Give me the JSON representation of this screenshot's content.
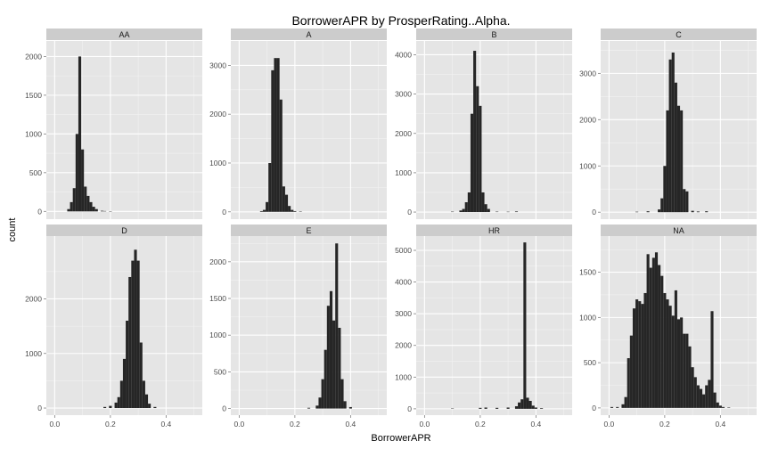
{
  "chart_data": {
    "type": "bar",
    "title": "BorrowerAPR by ProsperRating..Alpha.",
    "xlabel": "BorrowerAPR",
    "ylabel": "count",
    "xlim": [
      -0.03,
      0.53
    ],
    "x_ticks": [
      "0.0",
      "0.2",
      "0.4"
    ],
    "x_tick_values": [
      0,
      0.2,
      0.4
    ],
    "bin_width": 0.01,
    "grid": true,
    "facets": [
      {
        "label": "AA",
        "ylim": [
          -100,
          2200
        ],
        "y_ticks": [
          0,
          500,
          1000,
          1500,
          2000
        ],
        "bins": [
          [
            0.05,
            30
          ],
          [
            0.06,
            120
          ],
          [
            0.07,
            300
          ],
          [
            0.08,
            1000
          ],
          [
            0.09,
            2000
          ],
          [
            0.1,
            800
          ],
          [
            0.11,
            320
          ],
          [
            0.12,
            200
          ],
          [
            0.13,
            120
          ],
          [
            0.14,
            60
          ],
          [
            0.15,
            30
          ],
          [
            0.17,
            8
          ],
          [
            0.18,
            5
          ],
          [
            0.2,
            3
          ]
        ]
      },
      {
        "label": "A",
        "ylim": [
          -150,
          3500
        ],
        "y_ticks": [
          0,
          1000,
          2000,
          3000
        ],
        "bins": [
          [
            0.08,
            15
          ],
          [
            0.09,
            40
          ],
          [
            0.1,
            200
          ],
          [
            0.11,
            1000
          ],
          [
            0.12,
            2900
          ],
          [
            0.13,
            3150
          ],
          [
            0.14,
            3150
          ],
          [
            0.15,
            2300
          ],
          [
            0.16,
            520
          ],
          [
            0.17,
            350
          ],
          [
            0.18,
            120
          ],
          [
            0.19,
            40
          ],
          [
            0.2,
            15
          ],
          [
            0.22,
            8
          ]
        ]
      },
      {
        "label": "B",
        "ylim": [
          -180,
          4350
        ],
        "y_ticks": [
          0,
          1000,
          2000,
          3000,
          4000
        ],
        "bins": [
          [
            0.1,
            10
          ],
          [
            0.13,
            40
          ],
          [
            0.14,
            80
          ],
          [
            0.15,
            250
          ],
          [
            0.16,
            500
          ],
          [
            0.17,
            2500
          ],
          [
            0.18,
            4100
          ],
          [
            0.19,
            3200
          ],
          [
            0.2,
            2700
          ],
          [
            0.21,
            500
          ],
          [
            0.22,
            200
          ],
          [
            0.23,
            80
          ],
          [
            0.26,
            10
          ],
          [
            0.3,
            8
          ],
          [
            0.33,
            15
          ]
        ]
      },
      {
        "label": "C",
        "ylim": [
          -150,
          3700
        ],
        "y_ticks": [
          0,
          1000,
          2000,
          3000
        ],
        "bins": [
          [
            0.1,
            10
          ],
          [
            0.14,
            20
          ],
          [
            0.18,
            60
          ],
          [
            0.19,
            300
          ],
          [
            0.2,
            1000
          ],
          [
            0.21,
            2200
          ],
          [
            0.22,
            3300
          ],
          [
            0.23,
            3450
          ],
          [
            0.24,
            2800
          ],
          [
            0.25,
            2300
          ],
          [
            0.26,
            2200
          ],
          [
            0.27,
            500
          ],
          [
            0.28,
            450
          ],
          [
            0.3,
            30
          ],
          [
            0.32,
            15
          ],
          [
            0.35,
            20
          ]
        ]
      },
      {
        "label": "D",
        "ylim": [
          -130,
          3150
        ],
        "y_ticks": [
          0,
          1000,
          2000
        ],
        "bins": [
          [
            0.18,
            20
          ],
          [
            0.2,
            40
          ],
          [
            0.22,
            100
          ],
          [
            0.23,
            200
          ],
          [
            0.24,
            500
          ],
          [
            0.25,
            900
          ],
          [
            0.26,
            1600
          ],
          [
            0.27,
            2400
          ],
          [
            0.28,
            2700
          ],
          [
            0.29,
            2900
          ],
          [
            0.3,
            2700
          ],
          [
            0.31,
            1200
          ],
          [
            0.32,
            500
          ],
          [
            0.33,
            250
          ],
          [
            0.34,
            80
          ],
          [
            0.36,
            20
          ]
        ]
      },
      {
        "label": "E",
        "ylim": [
          -90,
          2350
        ],
        "y_ticks": [
          0,
          500,
          1000,
          1500,
          2000
        ],
        "bins": [
          [
            0.25,
            10
          ],
          [
            0.28,
            40
          ],
          [
            0.29,
            150
          ],
          [
            0.3,
            400
          ],
          [
            0.31,
            800
          ],
          [
            0.32,
            1400
          ],
          [
            0.33,
            1600
          ],
          [
            0.34,
            1200
          ],
          [
            0.35,
            2250
          ],
          [
            0.36,
            1100
          ],
          [
            0.37,
            400
          ],
          [
            0.38,
            100
          ],
          [
            0.4,
            20
          ]
        ]
      },
      {
        "label": "HR",
        "ylim": [
          -200,
          5450
        ],
        "y_ticks": [
          0,
          1000,
          2000,
          3000,
          4000,
          5000
        ],
        "bins": [
          [
            0.1,
            8
          ],
          [
            0.2,
            30
          ],
          [
            0.22,
            40
          ],
          [
            0.26,
            30
          ],
          [
            0.3,
            40
          ],
          [
            0.33,
            80
          ],
          [
            0.34,
            200
          ],
          [
            0.35,
            300
          ],
          [
            0.36,
            5250
          ],
          [
            0.37,
            350
          ],
          [
            0.38,
            250
          ],
          [
            0.39,
            100
          ],
          [
            0.4,
            40
          ],
          [
            0.42,
            20
          ]
        ]
      },
      {
        "label": "NA",
        "ylim": [
          -80,
          1900
        ],
        "y_ticks": [
          0,
          500,
          1000,
          1500
        ],
        "bins": [
          [
            0.01,
            10
          ],
          [
            0.03,
            10
          ],
          [
            0.05,
            40
          ],
          [
            0.06,
            120
          ],
          [
            0.07,
            550
          ],
          [
            0.08,
            800
          ],
          [
            0.09,
            1100
          ],
          [
            0.1,
            1200
          ],
          [
            0.11,
            1180
          ],
          [
            0.12,
            1150
          ],
          [
            0.13,
            1270
          ],
          [
            0.14,
            1700
          ],
          [
            0.15,
            1550
          ],
          [
            0.16,
            1660
          ],
          [
            0.17,
            1720
          ],
          [
            0.18,
            1580
          ],
          [
            0.19,
            1460
          ],
          [
            0.2,
            1270
          ],
          [
            0.21,
            1200
          ],
          [
            0.22,
            1130
          ],
          [
            0.23,
            1020
          ],
          [
            0.24,
            1300
          ],
          [
            0.25,
            980
          ],
          [
            0.26,
            1000
          ],
          [
            0.27,
            820
          ],
          [
            0.28,
            820
          ],
          [
            0.29,
            680
          ],
          [
            0.3,
            450
          ],
          [
            0.31,
            340
          ],
          [
            0.32,
            250
          ],
          [
            0.33,
            210
          ],
          [
            0.34,
            150
          ],
          [
            0.35,
            250
          ],
          [
            0.36,
            310
          ],
          [
            0.37,
            1070
          ],
          [
            0.38,
            170
          ],
          [
            0.39,
            60
          ],
          [
            0.4,
            25
          ],
          [
            0.41,
            10
          ],
          [
            0.43,
            5
          ]
        ]
      }
    ]
  }
}
